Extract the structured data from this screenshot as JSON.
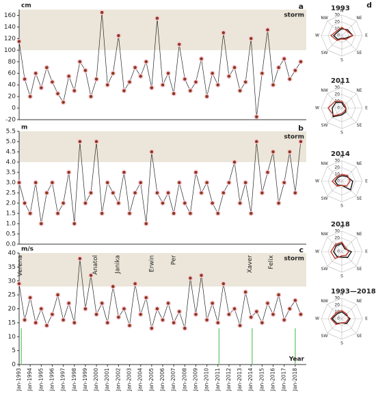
{
  "chart_data": [
    {
      "type": "line",
      "unit": "cm",
      "label": "a",
      "band_label": "storm",
      "band": [
        100,
        170
      ],
      "xlim": [
        1993,
        2019
      ],
      "ylim": [
        -20,
        170
      ],
      "yticks": [
        -20,
        0,
        20,
        40,
        60,
        80,
        100,
        120,
        140,
        160
      ],
      "x": [
        1993.0,
        1993.5,
        1994.0,
        1994.5,
        1995.0,
        1995.5,
        1996.0,
        1996.5,
        1997.0,
        1997.5,
        1998.0,
        1998.5,
        1999.0,
        1999.5,
        2000.0,
        2000.5,
        2001.0,
        2001.5,
        2002.0,
        2002.5,
        2003.0,
        2003.5,
        2004.0,
        2004.5,
        2005.0,
        2005.5,
        2006.0,
        2006.5,
        2007.0,
        2007.5,
        2008.0,
        2008.5,
        2009.0,
        2009.5,
        2010.0,
        2010.5,
        2011.0,
        2011.5,
        2012.0,
        2012.5,
        2013.0,
        2013.5,
        2014.0,
        2014.5,
        2015.0,
        2015.5,
        2016.0,
        2016.5,
        2017.0,
        2017.5,
        2018.0,
        2018.5
      ],
      "series": [
        {
          "color": "#8b3a1a",
          "values": [
            115,
            50,
            20,
            60,
            35,
            70,
            45,
            25,
            10,
            55,
            30,
            80,
            65,
            20,
            50,
            165,
            40,
            60,
            125,
            30,
            45,
            70,
            55,
            80,
            35,
            155,
            40,
            60,
            25,
            110,
            50,
            30,
            45,
            85,
            20,
            60,
            40,
            130,
            55,
            70,
            30,
            45,
            120,
            -15,
            60,
            135,
            40,
            70,
            85,
            50,
            65,
            80
          ]
        }
      ]
    },
    {
      "type": "line",
      "unit": "m",
      "label": "b",
      "band_label": "storm",
      "band": [
        4.0,
        5.5
      ],
      "xlim": [
        1993,
        2019
      ],
      "ylim": [
        0,
        5.5
      ],
      "yticks": [
        {
          "value": 0,
          "label": "0.0"
        },
        0.5,
        {
          "value": 1,
          "label": "1.0"
        },
        1.5,
        {
          "value": 2,
          "label": "2.0"
        },
        2.5,
        {
          "value": 3,
          "label": "3.0"
        },
        3.5,
        {
          "value": 4,
          "label": "4.0"
        },
        4.5,
        {
          "value": 5,
          "label": "5.0"
        },
        5.5
      ],
      "x": [
        1993.0,
        1993.5,
        1994.0,
        1994.5,
        1995.0,
        1995.5,
        1996.0,
        1996.5,
        1997.0,
        1997.5,
        1998.0,
        1998.5,
        1999.0,
        1999.5,
        2000.0,
        2000.5,
        2001.0,
        2001.5,
        2002.0,
        2002.5,
        2003.0,
        2003.5,
        2004.0,
        2004.5,
        2005.0,
        2005.5,
        2006.0,
        2006.5,
        2007.0,
        2007.5,
        2008.0,
        2008.5,
        2009.0,
        2009.5,
        2010.0,
        2010.5,
        2011.0,
        2011.5,
        2012.0,
        2012.5,
        2013.0,
        2013.5,
        2014.0,
        2014.5,
        2015.0,
        2015.5,
        2016.0,
        2016.5,
        2017.0,
        2017.5,
        2018.0,
        2018.5
      ],
      "series": [
        {
          "color": "#8b3a1a",
          "values": [
            3.0,
            2.0,
            1.5,
            3.0,
            1.0,
            2.5,
            3.0,
            1.5,
            2.0,
            3.5,
            1.0,
            5.0,
            2.0,
            2.5,
            5.0,
            1.5,
            3.0,
            2.5,
            2.0,
            3.5,
            1.5,
            2.5,
            3.0,
            1.0,
            4.5,
            2.5,
            2.0,
            2.5,
            1.5,
            3.0,
            2.0,
            1.5,
            3.5,
            2.5,
            3.0,
            2.0,
            1.5,
            2.5,
            3.0,
            4.0,
            2.0,
            3.0,
            1.5,
            5.0,
            2.5,
            3.5,
            4.5,
            2.0,
            3.0,
            4.5,
            2.5,
            5.0
          ]
        }
      ]
    },
    {
      "type": "line",
      "unit": "m/s",
      "label": "c",
      "band_label": "storm",
      "band": [
        28,
        40
      ],
      "xlabel": "Year",
      "xlim": [
        1993,
        2019
      ],
      "ylim": [
        0,
        40
      ],
      "yticks": [
        0,
        5,
        10,
        15,
        20,
        25,
        30,
        35,
        40
      ],
      "xticks": [
        {
          "value": 1993,
          "label": "Jan-1993"
        },
        {
          "value": 1994,
          "label": "Jan-1994"
        },
        {
          "value": 1995,
          "label": "Jan-1995"
        },
        {
          "value": 1996,
          "label": "Jan-1996"
        },
        {
          "value": 1997,
          "label": "Jan-1997"
        },
        {
          "value": 1998,
          "label": "Jan-1998"
        },
        {
          "value": 1999,
          "label": "Jan-1999"
        },
        {
          "value": 2000,
          "label": "Jan-2000"
        },
        {
          "value": 2001,
          "label": "Jan-2001"
        },
        {
          "value": 2002,
          "label": "Jan-2002"
        },
        {
          "value": 2003,
          "label": "Jan-2003"
        },
        {
          "value": 2004,
          "label": "Jan-2004"
        },
        {
          "value": 2005,
          "label": "Jan-2005"
        },
        {
          "value": 2006,
          "label": "Jan-2006"
        },
        {
          "value": 2007,
          "label": "Jan-2007"
        },
        {
          "value": 2008,
          "label": "Jan-2008"
        },
        {
          "value": 2009,
          "label": "Jan-2009"
        },
        {
          "value": 2010,
          "label": "Jan-2010"
        },
        {
          "value": 2011,
          "label": "Jan-2011"
        },
        {
          "value": 2012,
          "label": "Jan-2012"
        },
        {
          "value": 2013,
          "label": "Jan-2013"
        },
        {
          "value": 2014,
          "label": "Jan-2014"
        },
        {
          "value": 2015,
          "label": "Jan-2015"
        },
        {
          "value": 2016,
          "label": "Jan-2016"
        },
        {
          "value": 2017,
          "label": "Jan-2017"
        },
        {
          "value": 2018,
          "label": "Jan-2018"
        }
      ],
      "annotations": [
        {
          "text": "Verena",
          "x": 1993.1
        },
        {
          "text": "Anatol",
          "x": 1999.9
        },
        {
          "text": "Janika",
          "x": 2001.9
        },
        {
          "text": "Erwin",
          "x": 2005.0
        },
        {
          "text": "Per",
          "x": 2007.0
        },
        {
          "text": "Xaver",
          "x": 2013.9
        },
        {
          "text": "Felix",
          "x": 2015.8
        }
      ],
      "event_lines": {
        "x": [
          1993.2,
          2011.1,
          2014.1,
          2018.0
        ],
        "top": 13,
        "color": "#7ccf7c"
      },
      "x": [
        1993.0,
        1993.5,
        1994.0,
        1994.5,
        1995.0,
        1995.5,
        1996.0,
        1996.5,
        1997.0,
        1997.5,
        1998.0,
        1998.5,
        1999.0,
        1999.5,
        2000.0,
        2000.5,
        2001.0,
        2001.5,
        2002.0,
        2002.5,
        2003.0,
        2003.5,
        2004.0,
        2004.5,
        2005.0,
        2005.5,
        2006.0,
        2006.5,
        2007.0,
        2007.5,
        2008.0,
        2008.5,
        2009.0,
        2009.5,
        2010.0,
        2010.5,
        2011.0,
        2011.5,
        2012.0,
        2012.5,
        2013.0,
        2013.5,
        2014.0,
        2014.5,
        2015.0,
        2015.5,
        2016.0,
        2016.5,
        2017.0,
        2017.5,
        2018.0,
        2018.5
      ],
      "series": [
        {
          "color": "#8b3a1a",
          "values": [
            29,
            16,
            24,
            15,
            20,
            14,
            18,
            25,
            16,
            22,
            15,
            38,
            20,
            32,
            18,
            22,
            15,
            28,
            17,
            20,
            14,
            29,
            18,
            24,
            13,
            20,
            16,
            22,
            15,
            19,
            13,
            31,
            18,
            32,
            16,
            22,
            15,
            29,
            18,
            20,
            14,
            26,
            17,
            19,
            15,
            22,
            18,
            25,
            16,
            20,
            23,
            18
          ]
        }
      ]
    },
    {
      "type": "radar",
      "label": "d",
      "title": "1993",
      "categories": [
        "N",
        "NE",
        "E",
        "SE",
        "S",
        "SW",
        "W",
        "NW"
      ],
      "rlim": [
        0,
        30
      ],
      "rticks": [
        0,
        10,
        20,
        30
      ],
      "series": [
        {
          "color": "#111111",
          "values": [
            10,
            12,
            16,
            6,
            4,
            8,
            12,
            8
          ]
        },
        {
          "color": "#c0392b",
          "values": [
            12,
            10,
            16,
            8,
            5,
            10,
            16,
            10
          ]
        }
      ]
    },
    {
      "type": "radar",
      "title": "2011",
      "categories": [
        "N",
        "NE",
        "E",
        "SE",
        "S",
        "SW",
        "W",
        "NW"
      ],
      "rlim": [
        0,
        30
      ],
      "rticks": [
        0,
        10,
        20,
        30
      ],
      "series": [
        {
          "color": "#111111",
          "values": [
            8,
            4,
            6,
            8,
            10,
            18,
            14,
            12
          ]
        },
        {
          "color": "#c0392b",
          "values": [
            10,
            6,
            6,
            6,
            8,
            16,
            20,
            14
          ]
        }
      ]
    },
    {
      "type": "radar",
      "title": "2014",
      "categories": [
        "N",
        "NE",
        "E",
        "SE",
        "S",
        "SW",
        "W",
        "NW"
      ],
      "rlim": [
        0,
        30
      ],
      "rticks": [
        0,
        10,
        20,
        30
      ],
      "series": [
        {
          "color": "#111111",
          "values": [
            8,
            10,
            16,
            18,
            6,
            8,
            10,
            8
          ]
        },
        {
          "color": "#c0392b",
          "values": [
            10,
            12,
            12,
            10,
            6,
            10,
            14,
            10
          ]
        }
      ]
    },
    {
      "type": "radar",
      "title": "2018",
      "categories": [
        "N",
        "NE",
        "E",
        "SE",
        "S",
        "SW",
        "W",
        "NW"
      ],
      "rlim": [
        0,
        30
      ],
      "rticks": [
        0,
        10,
        20,
        30
      ],
      "series": [
        {
          "color": "#111111",
          "values": [
            12,
            6,
            14,
            12,
            8,
            10,
            12,
            12
          ]
        },
        {
          "color": "#c0392b",
          "values": [
            14,
            8,
            10,
            8,
            6,
            14,
            16,
            14
          ]
        }
      ]
    },
    {
      "type": "radar",
      "title": "1993—2018",
      "categories": [
        "N",
        "NE",
        "E",
        "SE",
        "S",
        "SW",
        "W",
        "NW"
      ],
      "rlim": [
        0,
        30
      ],
      "rticks": [
        0,
        10,
        20,
        30
      ],
      "series": [
        {
          "color": "#111111",
          "values": [
            10,
            8,
            12,
            10,
            6,
            10,
            14,
            10
          ]
        },
        {
          "color": "#c0392b",
          "values": [
            12,
            10,
            10,
            8,
            6,
            12,
            16,
            12
          ]
        }
      ]
    }
  ]
}
